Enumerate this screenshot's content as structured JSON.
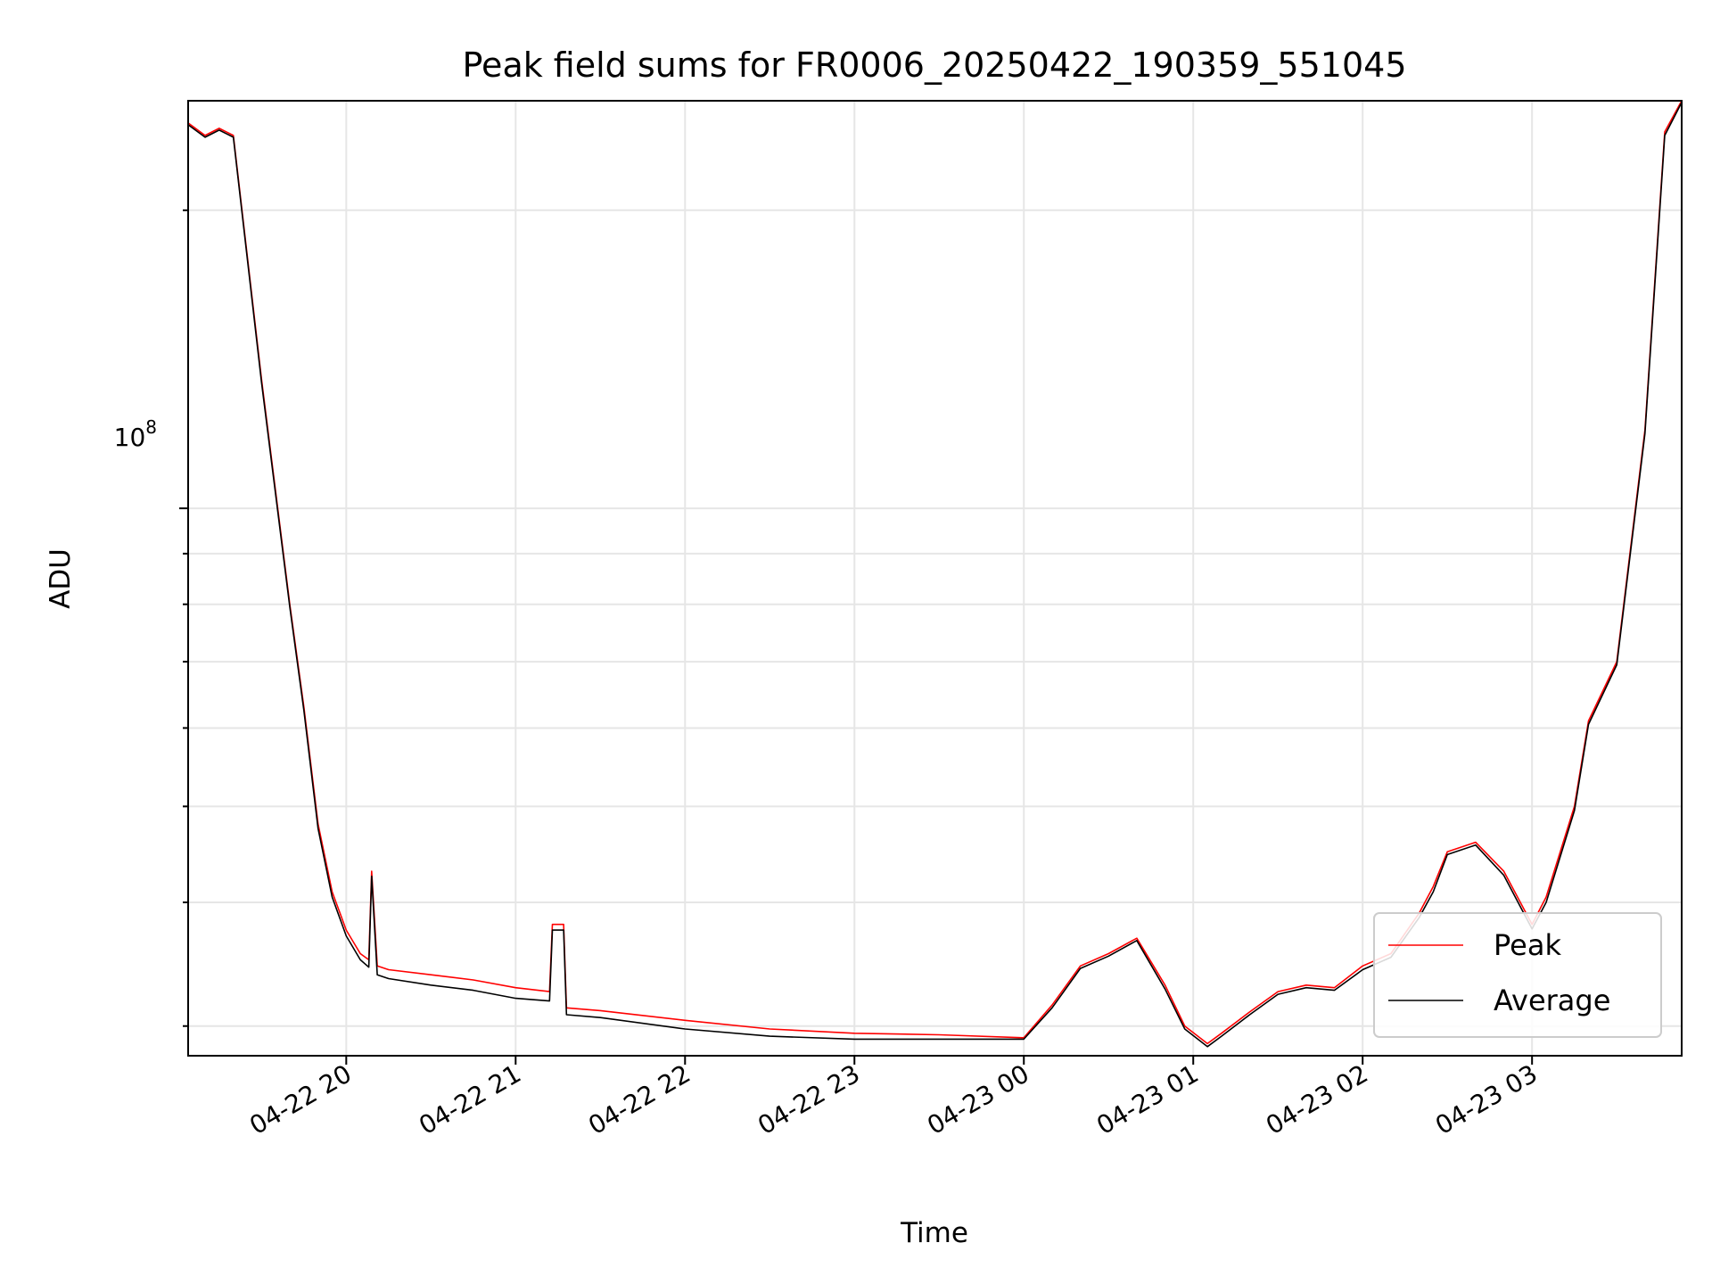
{
  "chart_data": {
    "type": "line",
    "title": "Peak field sums for FR0006_20250422_190359_551045",
    "xlabel": "Time",
    "ylabel": "ADU",
    "yscale": "log",
    "xlim": [
      "2025-04-22 19:04",
      "2025-04-23 03:53"
    ],
    "ylim": [
      28000000,
      258000000
    ],
    "x_ticks": [
      "04-22 20",
      "04-22 21",
      "04-22 22",
      "04-22 23",
      "04-23 00",
      "04-23 01",
      "04-23 02",
      "04-23 03"
    ],
    "y_major_tick": "10^8",
    "y_major_tick_base": "10",
    "y_major_tick_exp": "8",
    "grid": true,
    "legend": {
      "position": "lower-right",
      "entries": [
        "Peak",
        "Average"
      ]
    },
    "colors": {
      "Peak": "#ff0000",
      "Average": "#000000"
    },
    "series": [
      {
        "name": "Peak",
        "x": [
          "2025-04-22 19:04",
          "2025-04-22 19:10",
          "2025-04-22 19:15",
          "2025-04-22 19:20",
          "2025-04-22 19:30",
          "2025-04-22 19:40",
          "2025-04-22 19:45",
          "2025-04-22 19:50",
          "2025-04-22 19:55",
          "2025-04-22 20:00",
          "2025-04-22 20:05",
          "2025-04-22 20:08",
          "2025-04-22 20:09",
          "2025-04-22 20:11",
          "2025-04-22 20:15",
          "2025-04-22 20:30",
          "2025-04-22 20:45",
          "2025-04-22 21:00",
          "2025-04-22 21:12",
          "2025-04-22 21:13",
          "2025-04-22 21:17",
          "2025-04-22 21:18",
          "2025-04-22 21:30",
          "2025-04-22 22:00",
          "2025-04-22 22:30",
          "2025-04-22 23:00",
          "2025-04-22 23:30",
          "2025-04-23 00:00",
          "2025-04-23 00:10",
          "2025-04-23 00:20",
          "2025-04-23 00:30",
          "2025-04-23 00:40",
          "2025-04-23 00:50",
          "2025-04-23 00:57",
          "2025-04-23 01:05",
          "2025-04-23 01:10",
          "2025-04-23 01:20",
          "2025-04-23 01:30",
          "2025-04-23 01:40",
          "2025-04-23 01:50",
          "2025-04-23 02:00",
          "2025-04-23 02:10",
          "2025-04-23 02:20",
          "2025-04-23 02:25",
          "2025-04-23 02:30",
          "2025-04-23 02:40",
          "2025-04-23 02:50",
          "2025-04-23 03:00",
          "2025-04-23 03:05",
          "2025-04-23 03:15",
          "2025-04-23 03:20",
          "2025-04-23 03:30",
          "2025-04-23 03:40",
          "2025-04-23 03:47",
          "2025-04-23 03:53"
        ],
        "values": [
          245000000,
          238000000,
          242000000,
          238000000,
          135000000,
          80000000,
          63000000,
          48000000,
          41000000,
          37500000,
          35500000,
          35000000,
          43000000,
          34500000,
          34200000,
          33800000,
          33400000,
          32800000,
          32500000,
          38000000,
          38000000,
          31300000,
          31100000,
          30400000,
          29800000,
          29500000,
          29400000,
          29200000,
          31500000,
          34500000,
          35500000,
          36800000,
          33000000,
          30000000,
          28800000,
          29500000,
          31000000,
          32500000,
          33000000,
          32800000,
          34500000,
          35500000,
          39000000,
          41500000,
          45000000,
          46000000,
          43000000,
          38000000,
          40500000,
          50000000,
          61000000,
          70000000,
          120000000,
          240000000,
          258000000
        ]
      },
      {
        "name": "Average",
        "x": [
          "2025-04-22 19:04",
          "2025-04-22 19:10",
          "2025-04-22 19:15",
          "2025-04-22 19:20",
          "2025-04-22 19:30",
          "2025-04-22 19:40",
          "2025-04-22 19:45",
          "2025-04-22 19:50",
          "2025-04-22 19:55",
          "2025-04-22 20:00",
          "2025-04-22 20:05",
          "2025-04-22 20:08",
          "2025-04-22 20:09",
          "2025-04-22 20:11",
          "2025-04-22 20:15",
          "2025-04-22 20:30",
          "2025-04-22 20:45",
          "2025-04-22 21:00",
          "2025-04-22 21:12",
          "2025-04-22 21:13",
          "2025-04-22 21:17",
          "2025-04-22 21:18",
          "2025-04-22 21:30",
          "2025-04-22 22:00",
          "2025-04-22 22:30",
          "2025-04-22 23:00",
          "2025-04-22 23:30",
          "2025-04-23 00:00",
          "2025-04-23 00:10",
          "2025-04-23 00:20",
          "2025-04-23 00:30",
          "2025-04-23 00:40",
          "2025-04-23 00:50",
          "2025-04-23 00:57",
          "2025-04-23 01:05",
          "2025-04-23 01:10",
          "2025-04-23 01:20",
          "2025-04-23 01:30",
          "2025-04-23 01:40",
          "2025-04-23 01:50",
          "2025-04-23 02:00",
          "2025-04-23 02:10",
          "2025-04-23 02:20",
          "2025-04-23 02:25",
          "2025-04-23 02:30",
          "2025-04-23 02:40",
          "2025-04-23 02:50",
          "2025-04-23 03:00",
          "2025-04-23 03:05",
          "2025-04-23 03:15",
          "2025-04-23 03:20",
          "2025-04-23 03:30",
          "2025-04-23 03:40",
          "2025-04-23 03:47",
          "2025-04-23 03:53"
        ],
        "values": [
          244000000,
          237000000,
          241000000,
          237000000,
          134000000,
          79500000,
          62500000,
          47500000,
          40500000,
          37000000,
          35000000,
          34400000,
          42500000,
          33800000,
          33500000,
          33000000,
          32600000,
          32000000,
          31800000,
          37500000,
          37500000,
          30800000,
          30600000,
          29800000,
          29300000,
          29100000,
          29100000,
          29100000,
          31300000,
          34300000,
          35300000,
          36600000,
          32700000,
          29800000,
          28600000,
          29300000,
          30800000,
          32300000,
          32800000,
          32600000,
          34200000,
          35200000,
          38600000,
          41000000,
          44700000,
          45700000,
          42600000,
          37600000,
          40000000,
          49500000,
          60500000,
          69500000,
          119000000,
          238000000,
          257000000
        ]
      }
    ]
  }
}
